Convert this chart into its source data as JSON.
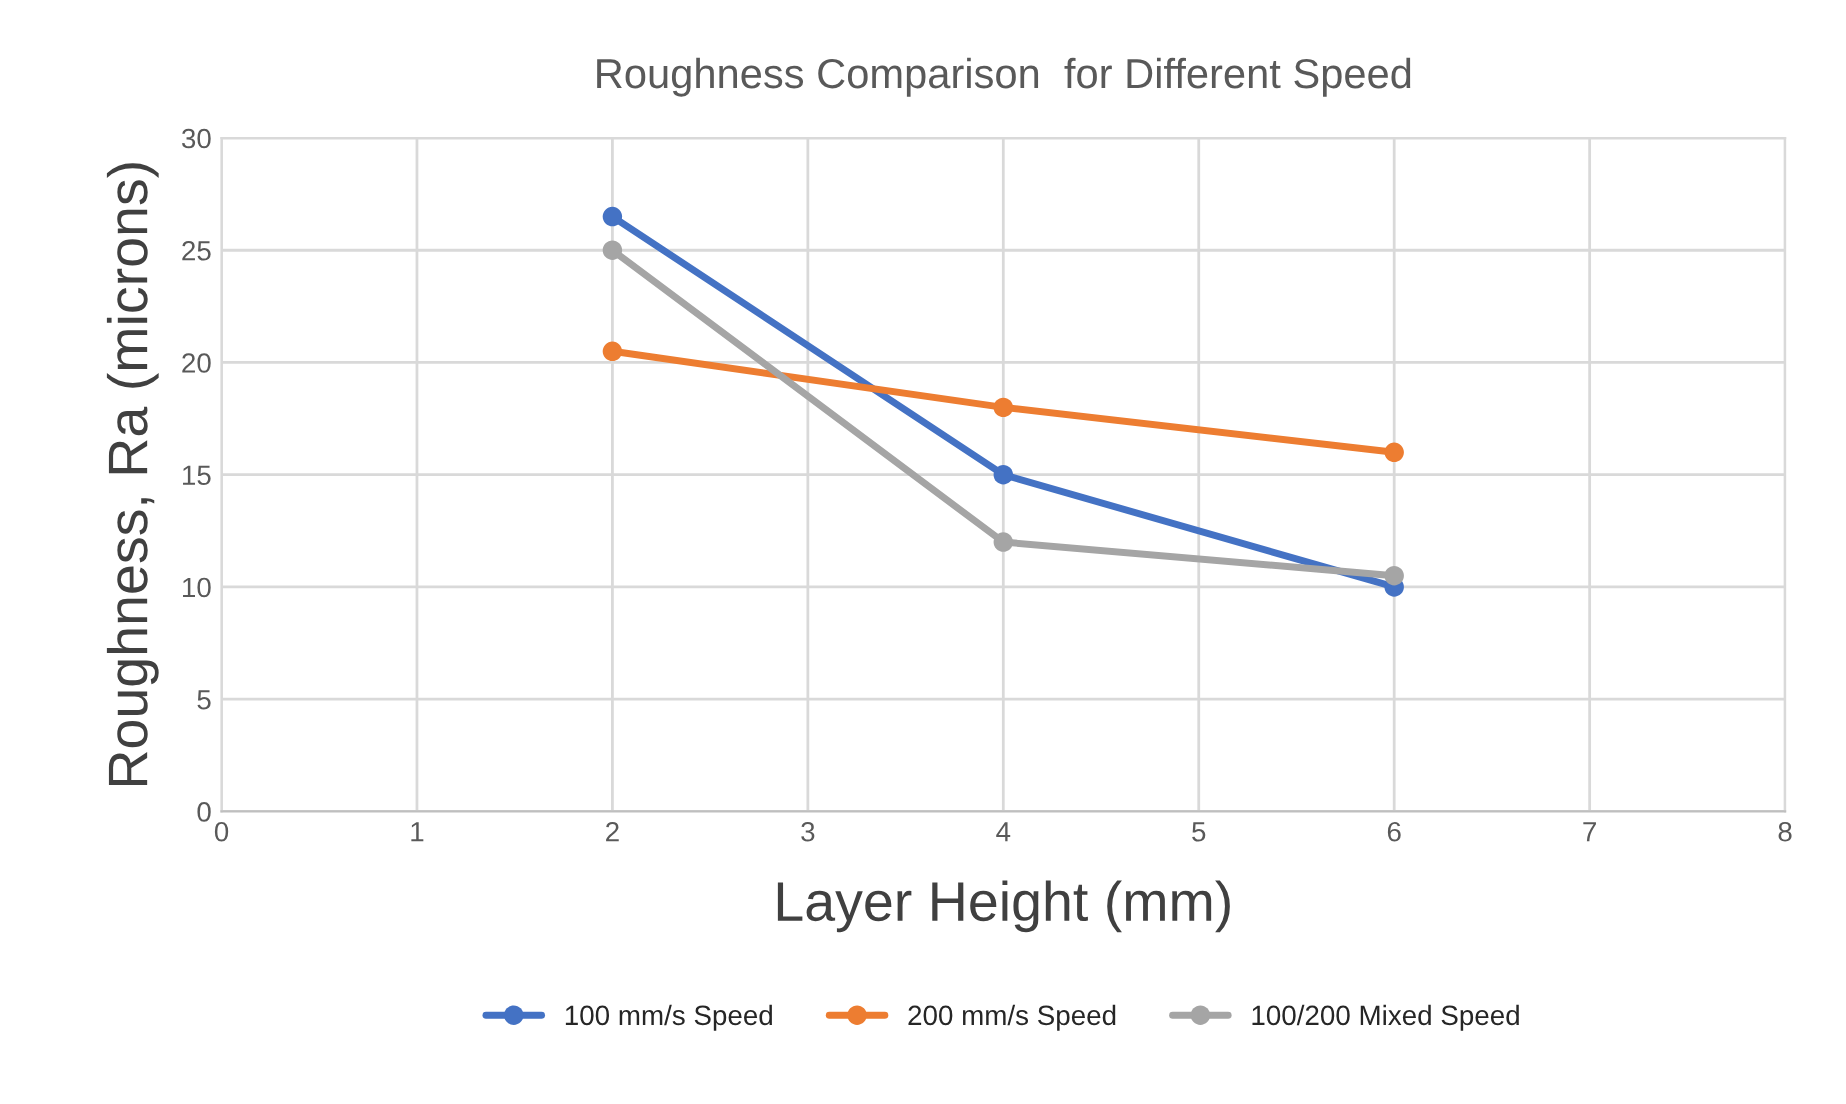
{
  "chart_data": {
    "type": "line",
    "title": "Roughness Comparison  for Different Speed",
    "xlabel": "Layer Height (mm)",
    "ylabel": "Roughness, Ra (microns)",
    "x": [
      2,
      4,
      6
    ],
    "series": [
      {
        "name": "100 mm/s Speed",
        "color": "#4472c4",
        "values": [
          26.5,
          15,
          10
        ]
      },
      {
        "name": "200 mm/s Speed",
        "color": "#ed7d31",
        "values": [
          20.5,
          18,
          16
        ]
      },
      {
        "name": "100/200 Mixed Speed",
        "color": "#a5a5a5",
        "values": [
          25,
          12,
          10.5
        ]
      }
    ],
    "xlim": [
      0,
      8
    ],
    "xticks": [
      0,
      1,
      2,
      3,
      4,
      5,
      6,
      7,
      8
    ],
    "ylim": [
      0,
      30
    ],
    "yticks": [
      0,
      5,
      10,
      15,
      20,
      25,
      30
    ],
    "grid": true,
    "legend": "bottom",
    "marker": "circle",
    "line_style": "solid"
  }
}
